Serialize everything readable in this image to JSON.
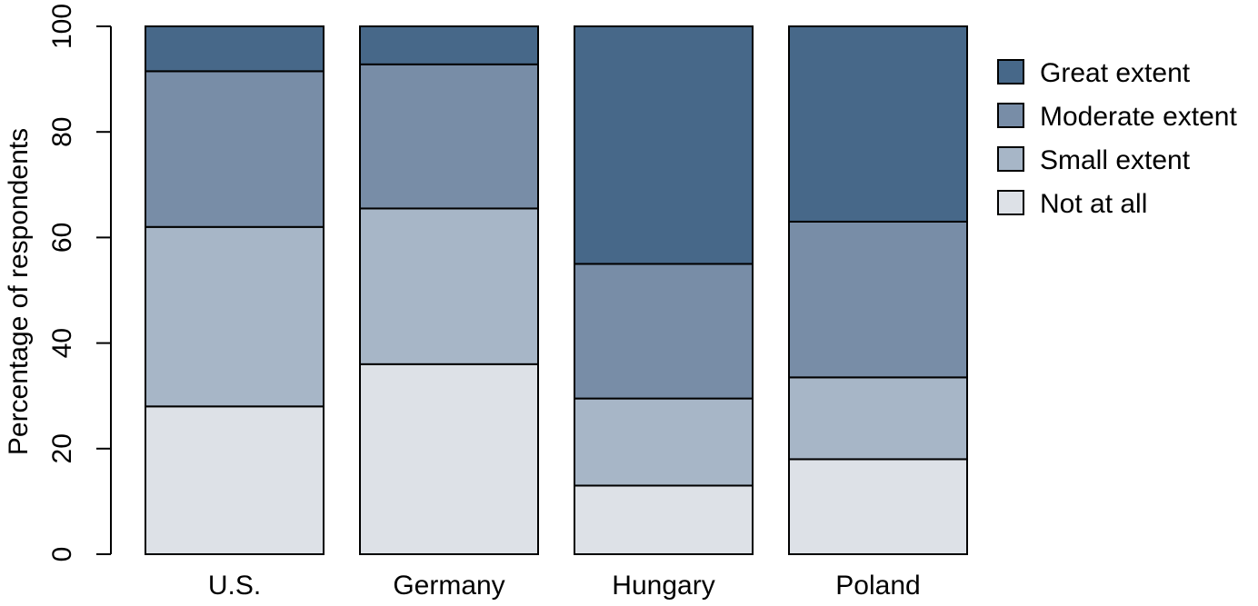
{
  "chart_data": {
    "type": "bar",
    "stacked": true,
    "title": "",
    "xlabel": "",
    "ylabel": "Percentage of respondents",
    "ylim": [
      0,
      100
    ],
    "yticks": [
      0,
      20,
      40,
      60,
      80,
      100
    ],
    "grid": false,
    "legend_position": "right",
    "categories": [
      "U.S.",
      "Germany",
      "Hungary",
      "Poland"
    ],
    "series": [
      {
        "name": "Not at all",
        "color": "#dde1e7",
        "values": [
          28,
          36,
          13,
          18
        ]
      },
      {
        "name": "Small extent",
        "color": "#a7b6c7",
        "values": [
          34,
          29.5,
          16.5,
          15.5
        ]
      },
      {
        "name": "Moderate extent",
        "color": "#788da7",
        "values": [
          29.5,
          27.3,
          25.5,
          29.5
        ]
      },
      {
        "name": "Great extent",
        "color": "#476889",
        "values": [
          8.5,
          7.2,
          45,
          37
        ]
      }
    ]
  }
}
